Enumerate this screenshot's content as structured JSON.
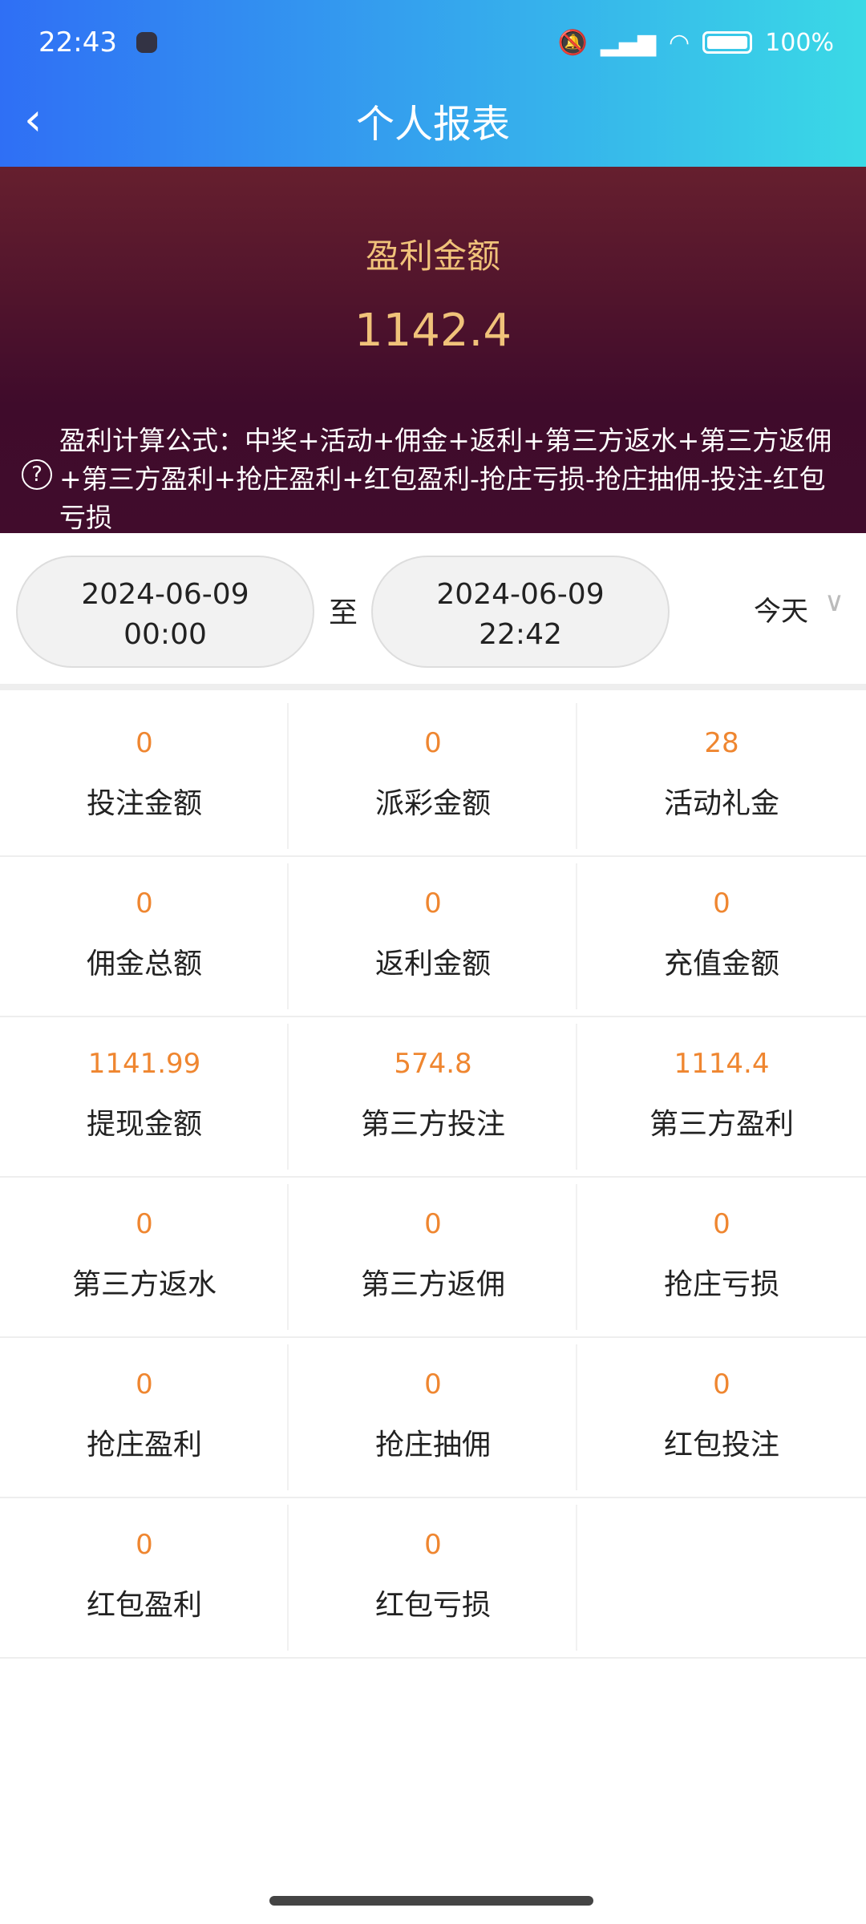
{
  "status_bar": {
    "time": "22:43",
    "battery": "100%",
    "icons": [
      "notification-app-icon",
      "bell-muted-icon",
      "hd-signal-icon",
      "wifi-icon",
      "battery-icon"
    ]
  },
  "nav": {
    "title": "个人报表",
    "back_icon": "chevron-left-icon"
  },
  "summary": {
    "label": "盈利金额",
    "amount": "1142.4",
    "formula": "盈利计算公式：中奖+活动+佣金+返利+第三方返水+第三方返佣+第三方盈利+抢庄盈利+红包盈利-抢庄亏损-抢庄抽佣-投注-红包亏损",
    "accent": "#f0c27a"
  },
  "date_range": {
    "start_date": "2024-06-09",
    "start_time": "00:00",
    "separator": "至",
    "end_date": "2024-06-09",
    "end_time": "22:42",
    "preset": "今天"
  },
  "stats": [
    {
      "value": "0",
      "label": "投注金额"
    },
    {
      "value": "0",
      "label": "派彩金额"
    },
    {
      "value": "28",
      "label": "活动礼金"
    },
    {
      "value": "0",
      "label": "佣金总额"
    },
    {
      "value": "0",
      "label": "返利金额"
    },
    {
      "value": "0",
      "label": "充值金额"
    },
    {
      "value": "1141.99",
      "label": "提现金额"
    },
    {
      "value": "574.8",
      "label": "第三方投注"
    },
    {
      "value": "1114.4",
      "label": "第三方盈利"
    },
    {
      "value": "0",
      "label": "第三方返水"
    },
    {
      "value": "0",
      "label": "第三方返佣"
    },
    {
      "value": "0",
      "label": "抢庄亏损"
    },
    {
      "value": "0",
      "label": "抢庄盈利"
    },
    {
      "value": "0",
      "label": "抢庄抽佣"
    },
    {
      "value": "0",
      "label": "红包投注"
    },
    {
      "value": "0",
      "label": "红包盈利"
    },
    {
      "value": "0",
      "label": "红包亏损"
    }
  ],
  "colors": {
    "value": "#ef8630"
  }
}
